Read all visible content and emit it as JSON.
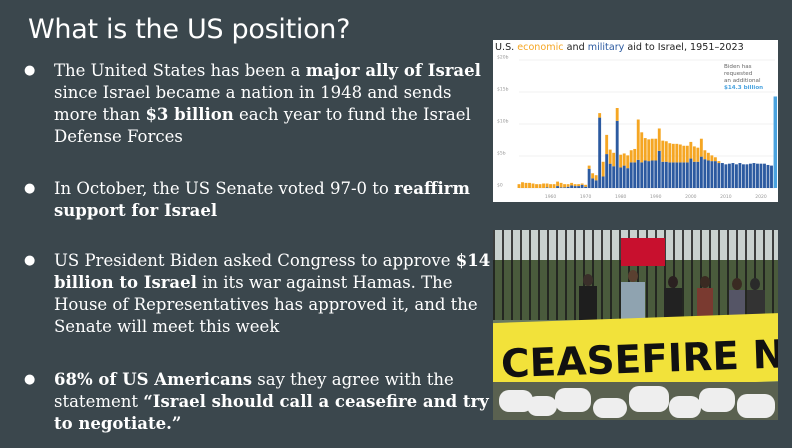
{
  "slide": {
    "title": "What is the US position?",
    "bullets": [
      {
        "bullet": "●",
        "parts": [
          {
            "text": "The United States has been a ",
            "bold": false
          },
          {
            "text": "major ally of Israel",
            "bold": true
          },
          {
            "text": " since Israel became a nation in 1948 and sends more than ",
            "bold": false
          },
          {
            "text": "$3 billion",
            "bold": true
          },
          {
            "text": " each year to fund the Israel Defense Forces",
            "bold": false
          }
        ]
      },
      {
        "bullet": "●",
        "parts": [
          {
            "text": "In October, the US Senate voted 97-0 to ",
            "bold": false
          },
          {
            "text": "reaffirm support for Israel",
            "bold": true
          }
        ]
      },
      {
        "bullet": "●",
        "parts": [
          {
            "text": "US President Biden asked Congress to approve ",
            "bold": false
          },
          {
            "text": "$14 billion to Israel",
            "bold": true
          },
          {
            "text": " in its war against Hamas.  The House of Representatives has approved it, and the Senate will meet this week",
            "bold": false
          }
        ]
      },
      {
        "bullet": "●",
        "parts": [
          {
            "text": "68% of US Americans",
            "bold": true
          },
          {
            "text": " say they agree with the statement ",
            "bold": false
          },
          {
            "text": "“Israel should call a ceasefire and try to negotiate.”",
            "bold": true
          }
        ]
      }
    ]
  },
  "chart_data": {
    "type": "bar",
    "stacked": true,
    "title_parts": [
      {
        "text": "U.S. ",
        "role": "plain"
      },
      {
        "text": "economic",
        "role": "economic"
      },
      {
        "text": " and ",
        "role": "plain"
      },
      {
        "text": "military",
        "role": "military"
      },
      {
        "text": " aid to Israel, 1951–2023",
        "role": "plain"
      }
    ],
    "annotation": [
      "Biden has",
      "requested",
      "an additional",
      "$14.3 billion"
    ],
    "y_tick_labels": [
      "$0",
      "$5b",
      "$10b",
      "$15b",
      "$20b"
    ],
    "x_tick_labels": [
      "1960",
      "1970",
      "1980",
      "1990",
      "2000",
      "2010",
      "2020"
    ],
    "ylim": [
      0,
      20
    ],
    "xlim": [
      1951,
      2024
    ],
    "colors": {
      "economic": "#f5a623",
      "military": "#2c5aa0",
      "request": "#4aa3df"
    },
    "series": [
      {
        "name": "economic",
        "x": [
          1951,
          1952,
          1953,
          1954,
          1955,
          1956,
          1957,
          1958,
          1959,
          1960,
          1961,
          1962,
          1963,
          1964,
          1965,
          1966,
          1967,
          1968,
          1969,
          1970,
          1971,
          1972,
          1973,
          1974,
          1975,
          1976,
          1977,
          1978,
          1979,
          1980,
          1981,
          1982,
          1983,
          1984,
          1985,
          1986,
          1987,
          1988,
          1989,
          1990,
          1991,
          1992,
          1993,
          1994,
          1995,
          1996,
          1997,
          1998,
          1999,
          2000,
          2001,
          2002,
          2003,
          2004,
          2005,
          2006,
          2007,
          2008
        ],
        "values": [
          0.6,
          0.9,
          0.8,
          0.8,
          0.7,
          0.6,
          0.6,
          0.7,
          0.6,
          0.6,
          0.6,
          0.7,
          0.7,
          0.5,
          0.4,
          0.4,
          0.3,
          0.3,
          0.2,
          0.3,
          0.5,
          0.8,
          0.8,
          0.7,
          2.3,
          3.0,
          2.2,
          2.1,
          2.0,
          2.0,
          1.9,
          2.0,
          1.9,
          2.1,
          6.3,
          4.7,
          3.5,
          3.4,
          3.4,
          3.4,
          3.5,
          3.3,
          3.2,
          3.0,
          2.9,
          2.9,
          2.8,
          2.6,
          2.6,
          2.6,
          2.4,
          2.2,
          2.8,
          1.4,
          1.2,
          0.9,
          0.6,
          0.3
        ]
      },
      {
        "name": "military",
        "x": [
          1959,
          1962,
          1963,
          1964,
          1965,
          1966,
          1967,
          1968,
          1969,
          1970,
          1971,
          1972,
          1973,
          1974,
          1975,
          1976,
          1977,
          1978,
          1979,
          1980,
          1981,
          1982,
          1983,
          1984,
          1985,
          1986,
          1987,
          1988,
          1989,
          1990,
          1991,
          1992,
          1993,
          1994,
          1995,
          1996,
          1997,
          1998,
          1999,
          2000,
          2001,
          2002,
          2003,
          2004,
          2005,
          2006,
          2007,
          2008,
          2009,
          2010,
          2011,
          2012,
          2013,
          2014,
          2015,
          2016,
          2017,
          2018,
          2019,
          2020,
          2021,
          2022,
          2023
        ],
        "values": [
          0.1,
          0.3,
          0.1,
          0.1,
          0.2,
          0.4,
          0.3,
          0.3,
          0.5,
          0.2,
          3.0,
          1.5,
          1.2,
          11.0,
          1.8,
          5.3,
          3.8,
          3.4,
          10.5,
          3.2,
          3.5,
          3.1,
          4.0,
          4.0,
          4.4,
          4.0,
          4.3,
          4.2,
          4.3,
          4.3,
          5.8,
          4.1,
          4.1,
          4.0,
          4.0,
          4.0,
          4.0,
          4.0,
          4.0,
          4.6,
          4.1,
          4.1,
          4.9,
          4.5,
          4.3,
          4.2,
          4.2,
          3.9,
          3.9,
          3.7,
          3.8,
          3.9,
          3.7,
          3.9,
          3.7,
          3.7,
          3.8,
          3.9,
          3.8,
          3.8,
          3.8,
          3.6,
          3.5
        ]
      },
      {
        "name": "request",
        "x": [
          2024
        ],
        "values": [
          14.3
        ]
      }
    ]
  },
  "photo": {
    "banner_text": "CEASEFIRE NOW",
    "description_icon": "protest-photo"
  }
}
